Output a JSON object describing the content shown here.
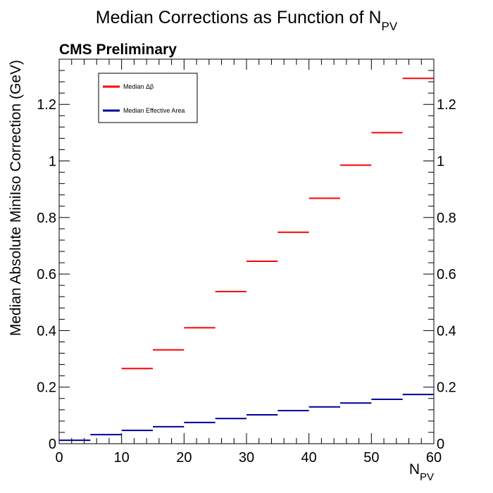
{
  "chart_data": {
    "type": "step",
    "title_main": "Median Corrections as Function of N",
    "title_sub": "PV",
    "label": "CMS Preliminary",
    "xlabel_main": "N",
    "xlabel_sub": "PV",
    "ylabel": "Median Absolute MiniIso Correction (GeV)",
    "xlim": [
      0,
      60
    ],
    "ylim": [
      0,
      1.36
    ],
    "x_ticks": [
      0,
      10,
      20,
      30,
      40,
      50,
      60
    ],
    "x_tick_labels": [
      "0",
      "10",
      "20",
      "30",
      "40",
      "50",
      "60"
    ],
    "y_ticks": [
      0,
      0.2,
      0.4,
      0.6,
      0.8,
      1.0,
      1.2
    ],
    "y_tick_labels": [
      "0",
      "0.2",
      "0.4",
      "0.6",
      "0.8",
      "1",
      "1.2"
    ],
    "bin_edges": [
      0,
      5,
      10,
      15,
      20,
      25,
      30,
      35,
      40,
      45,
      50,
      55,
      60
    ],
    "legend_position": "top-left",
    "series": [
      {
        "name": "Median Δβ",
        "color": "#ff0000",
        "values": [
          null,
          null,
          0.266,
          0.332,
          0.41,
          0.538,
          0.645,
          0.748,
          0.868,
          0.985,
          1.1,
          1.292
        ]
      },
      {
        "name": "Median Effective Area",
        "color": "#000099",
        "values": [
          0.012,
          0.032,
          0.047,
          0.06,
          0.075,
          0.089,
          0.102,
          0.117,
          0.13,
          0.144,
          0.157,
          0.174
        ]
      }
    ]
  }
}
